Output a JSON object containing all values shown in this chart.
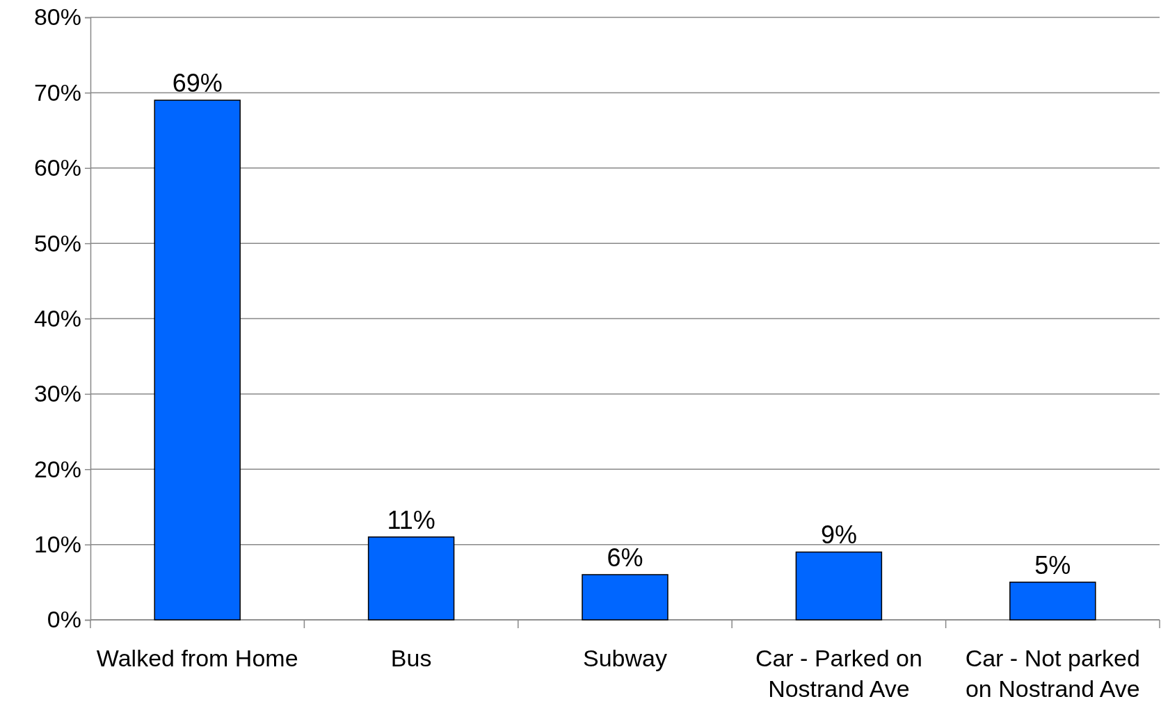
{
  "chart_data": {
    "type": "bar",
    "categories": [
      "Walked from Home",
      "Bus",
      "Subway",
      "Car - Parked on Nostrand Ave",
      "Car - Not parked on Nostrand Ave"
    ],
    "values": [
      69,
      11,
      6,
      9,
      5
    ],
    "value_labels": [
      "69%",
      "11%",
      "6%",
      "9%",
      "5%"
    ],
    "color": "#0066ff",
    "ylim": [
      0,
      80
    ],
    "yticks": [
      {
        "value": 0,
        "label": "0%"
      },
      {
        "value": 10,
        "label": "10%"
      },
      {
        "value": 20,
        "label": "20%"
      },
      {
        "value": 30,
        "label": "30%"
      },
      {
        "value": 40,
        "label": "40%"
      },
      {
        "value": 50,
        "label": "50%"
      },
      {
        "value": 60,
        "label": "60%"
      },
      {
        "value": 70,
        "label": "70%"
      },
      {
        "value": 80,
        "label": "80%"
      }
    ],
    "grid": "y"
  }
}
